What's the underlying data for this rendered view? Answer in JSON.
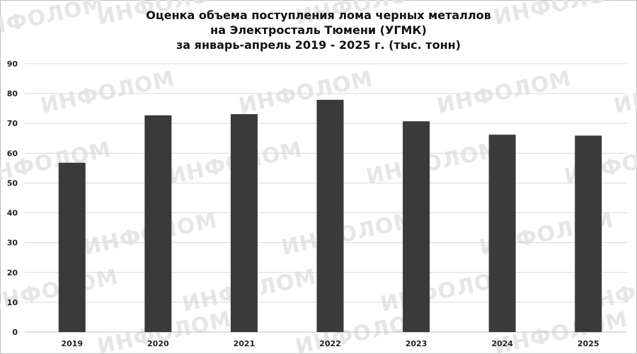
{
  "chart_data": {
    "type": "bar",
    "title_lines": [
      "Оценка объема поступления лома черных металлов",
      "на Электросталь Тюмени (УГМК)",
      "за январь-апрель 2019 - 2025 г. (тыс. тонн)"
    ],
    "categories": [
      "2019",
      "2020",
      "2021",
      "2022",
      "2023",
      "2024",
      "2025"
    ],
    "values": [
      56.8,
      72.7,
      73.1,
      77.9,
      70.7,
      66.2,
      65.9
    ],
    "ylim": [
      0,
      90
    ],
    "yticks": [
      0,
      10,
      20,
      30,
      40,
      50,
      60,
      70,
      80,
      90
    ],
    "grid": true,
    "bar_color": "#3a3a3a",
    "grid_color": "#d9d9d9",
    "watermark": "ИНФОЛОМ"
  }
}
